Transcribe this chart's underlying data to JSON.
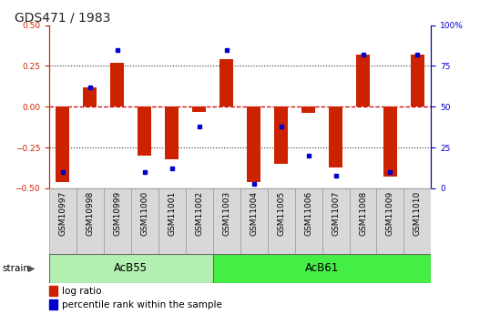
{
  "title": "GDS471 / 1983",
  "samples": [
    "GSM10997",
    "GSM10998",
    "GSM10999",
    "GSM11000",
    "GSM11001",
    "GSM11002",
    "GSM11003",
    "GSM11004",
    "GSM11005",
    "GSM11006",
    "GSM11007",
    "GSM11008",
    "GSM11009",
    "GSM11010"
  ],
  "log_ratio": [
    -0.46,
    0.12,
    0.27,
    -0.3,
    -0.32,
    -0.03,
    0.29,
    -0.46,
    -0.35,
    -0.04,
    -0.37,
    0.32,
    -0.43,
    0.32
  ],
  "percentile_rank": [
    10,
    62,
    85,
    10,
    12,
    38,
    85,
    3,
    38,
    20,
    8,
    82,
    10,
    82
  ],
  "groups": [
    {
      "label": "AcB55",
      "start": 0,
      "end": 5
    },
    {
      "label": "AcB61",
      "start": 6,
      "end": 13
    }
  ],
  "group_colors": [
    "#b2f0b2",
    "#44ee44"
  ],
  "ylim_left": [
    -0.5,
    0.5
  ],
  "ylim_right": [
    0,
    100
  ],
  "bar_color": "#cc2200",
  "dot_color": "#0000cc",
  "background_color": "#ffffff",
  "title_fontsize": 10,
  "tick_fontsize": 6.5,
  "group_label_fontsize": 8.5,
  "legend_fontsize": 7.5,
  "bar_width": 0.5
}
